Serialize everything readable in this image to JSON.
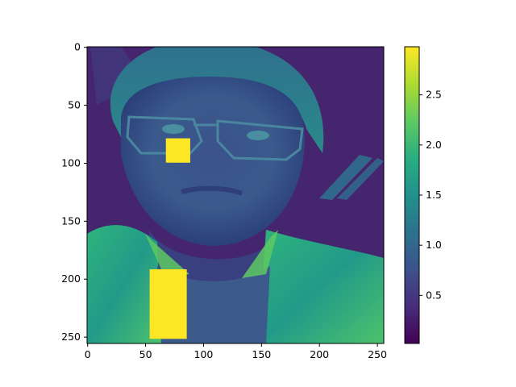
{
  "chart_data": {
    "type": "heatmap",
    "title": "",
    "xlabel": "",
    "ylabel": "",
    "image_size": [
      256,
      256
    ],
    "xlim": [
      0,
      255
    ],
    "ylim": [
      255,
      0
    ],
    "x_ticks": [
      0,
      50,
      100,
      150,
      200,
      250
    ],
    "y_ticks": [
      0,
      50,
      100,
      150,
      200,
      250
    ],
    "x_tick_labels": [
      "0",
      "50",
      "100",
      "150",
      "200",
      "250"
    ],
    "y_tick_labels": [
      "0",
      "50",
      "100",
      "150",
      "200",
      "250"
    ],
    "colormap": "viridis",
    "grid": false,
    "color_range": [
      0.02,
      2.98
    ],
    "colorbar": {
      "ticks": [
        0.5,
        1.0,
        1.5,
        2.0,
        2.5
      ],
      "tick_labels": [
        "0.5",
        "1.0",
        "1.5",
        "2.0",
        "2.5"
      ]
    },
    "content": "grayscale portrait photograph of a person wearing glasses, mapped to viridis colormap",
    "highlight_patches": [
      {
        "x_range": [
          68,
          89
        ],
        "y_range": [
          79,
          100
        ],
        "value": 2.98
      },
      {
        "x_range": [
          54,
          86
        ],
        "y_range": [
          192,
          252
        ],
        "value": 2.98
      }
    ]
  }
}
